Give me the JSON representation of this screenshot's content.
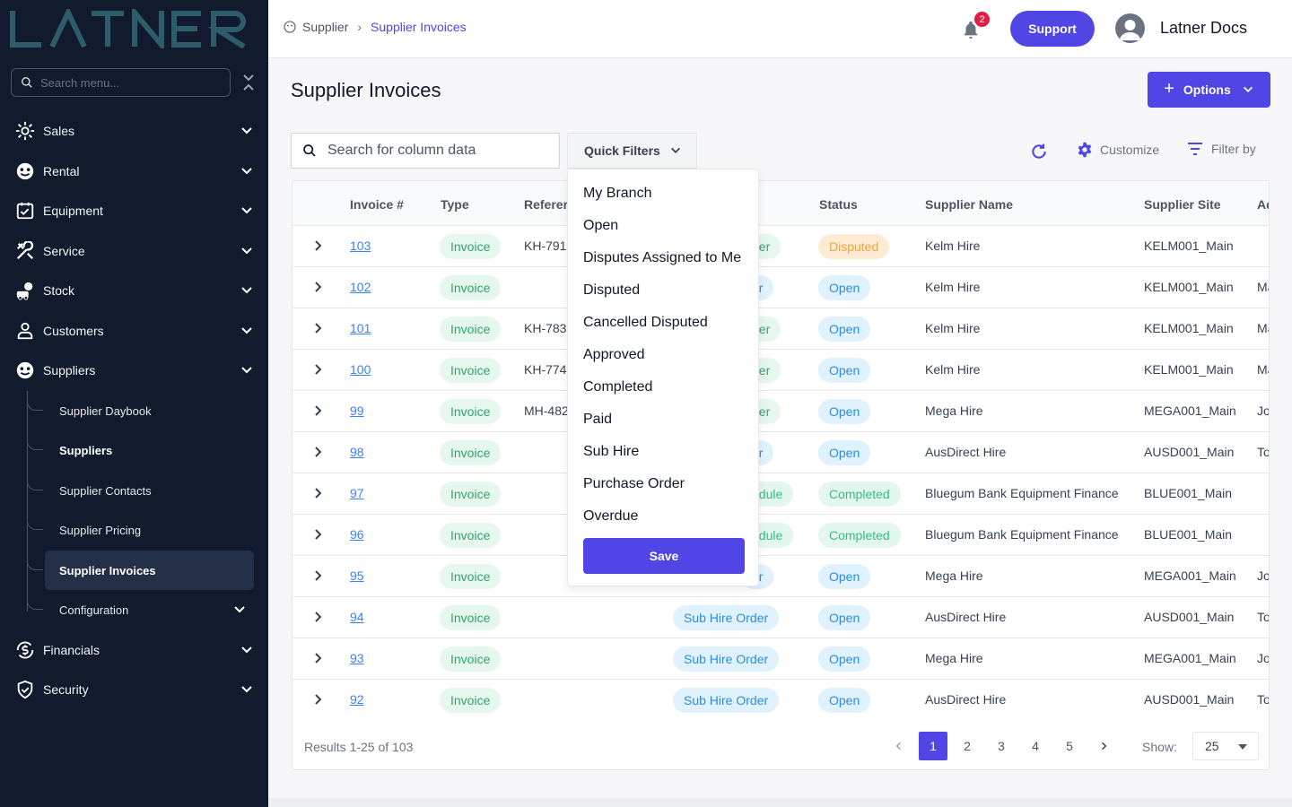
{
  "sidebar": {
    "logo_text": "LATNER",
    "search_placeholder": "Search menu...",
    "items": [
      {
        "label": "Sales",
        "icon": "sales-icon"
      },
      {
        "label": "Rental",
        "icon": "rental-icon"
      },
      {
        "label": "Equipment",
        "icon": "equipment-icon"
      },
      {
        "label": "Service",
        "icon": "service-icon"
      },
      {
        "label": "Stock",
        "icon": "stock-icon"
      },
      {
        "label": "Customers",
        "icon": "customers-icon"
      },
      {
        "label": "Suppliers",
        "icon": "suppliers-icon"
      },
      {
        "label": "Financials",
        "icon": "financials-icon"
      },
      {
        "label": "Security",
        "icon": "security-icon"
      }
    ],
    "sub_items": [
      {
        "label": "Supplier Daybook"
      },
      {
        "label": "Suppliers"
      },
      {
        "label": "Supplier Contacts"
      },
      {
        "label": "Supplier Pricing"
      },
      {
        "label": "Supplier Invoices"
      },
      {
        "label": "Configuration"
      }
    ]
  },
  "header": {
    "breadcrumb": [
      "Supplier",
      "Supplier Invoices"
    ],
    "notification_count": "2",
    "support_label": "Support",
    "user_name": "Latner Docs"
  },
  "page": {
    "title": "Supplier Invoices",
    "options_label": "Options",
    "search_placeholder": "Search for column data",
    "quick_filters_label": "Quick Filters",
    "customize_label": "Customize",
    "filter_by_label": "Filter by"
  },
  "quick_filters": {
    "items": [
      "My Branch",
      "Open",
      "Disputes Assigned to Me",
      "Disputed",
      "Cancelled Disputed",
      "Approved",
      "Completed",
      "Paid",
      "Sub Hire",
      "Purchase Order",
      "Overdue"
    ],
    "save_label": "Save"
  },
  "table": {
    "columns": [
      "Invoice #",
      "Type",
      "Referer",
      "Status",
      "Supplier Name",
      "Supplier Site",
      "Ad"
    ],
    "rows": [
      {
        "invoice": "103",
        "type": "Invoice",
        "reference": "KH-791",
        "order": "der",
        "status": "Disputed",
        "status_color": "orange",
        "supplier": "Kelm Hire",
        "site": "KELM001_Main",
        "extra": ""
      },
      {
        "invoice": "102",
        "type": "Invoice",
        "reference": "",
        "order": "er",
        "status": "Open",
        "status_color": "blue",
        "supplier": "Kelm Hire",
        "site": "KELM001_Main",
        "extra": "Ma"
      },
      {
        "invoice": "101",
        "type": "Invoice",
        "reference": "KH-783",
        "order": "der",
        "status": "Open",
        "status_color": "blue",
        "supplier": "Kelm Hire",
        "site": "KELM001_Main",
        "extra": "Ma"
      },
      {
        "invoice": "100",
        "type": "Invoice",
        "reference": "KH-774",
        "order": "der",
        "status": "Open",
        "status_color": "blue",
        "supplier": "Kelm Hire",
        "site": "KELM001_Main",
        "extra": "Ma"
      },
      {
        "invoice": "99",
        "type": "Invoice",
        "reference": "MH-482",
        "order": "der",
        "status": "Open",
        "status_color": "blue",
        "supplier": "Mega Hire",
        "site": "MEGA001_Main",
        "extra": "Jo"
      },
      {
        "invoice": "98",
        "type": "Invoice",
        "reference": "",
        "order": "er",
        "status": "Open",
        "status_color": "blue",
        "supplier": "AusDirect Hire",
        "site": "AUSD001_Main",
        "extra": "To"
      },
      {
        "invoice": "97",
        "type": "Invoice",
        "reference": "",
        "order": "edule",
        "status": "Completed",
        "status_color": "teal",
        "supplier": "Bluegum Bank Equipment Finance",
        "site": "BLUE001_Main",
        "extra": ""
      },
      {
        "invoice": "96",
        "type": "Invoice",
        "reference": "",
        "order": "edule",
        "status": "Completed",
        "status_color": "teal",
        "supplier": "Bluegum Bank Equipment Finance",
        "site": "BLUE001_Main",
        "extra": ""
      },
      {
        "invoice": "95",
        "type": "Invoice",
        "reference": "",
        "order": "er",
        "status": "Open",
        "status_color": "blue",
        "supplier": "Mega Hire",
        "site": "MEGA001_Main",
        "extra": "Jo"
      },
      {
        "invoice": "94",
        "type": "Invoice",
        "reference": "",
        "order": "Sub Hire Order",
        "status": "Open",
        "status_color": "blue",
        "supplier": "AusDirect Hire",
        "site": "AUSD001_Main",
        "extra": "To"
      },
      {
        "invoice": "93",
        "type": "Invoice",
        "reference": "",
        "order": "Sub Hire Order",
        "status": "Open",
        "status_color": "blue",
        "supplier": "Mega Hire",
        "site": "MEGA001_Main",
        "extra": "Jo"
      },
      {
        "invoice": "92",
        "type": "Invoice",
        "reference": "",
        "order": "Sub Hire Order",
        "status": "Open",
        "status_color": "blue",
        "supplier": "AusDirect Hire",
        "site": "AUSD001_Main",
        "extra": "To"
      }
    ]
  },
  "footer": {
    "results_text": "Results 1-25 of 103",
    "pages": [
      "1",
      "2",
      "3",
      "4",
      "5"
    ],
    "current_page": "1",
    "show_label": "Show:",
    "show_value": "25"
  },
  "colors": {
    "accent": "#4f46e5",
    "sidebar_bg": "#121b2e",
    "link": "#3b82f6"
  }
}
